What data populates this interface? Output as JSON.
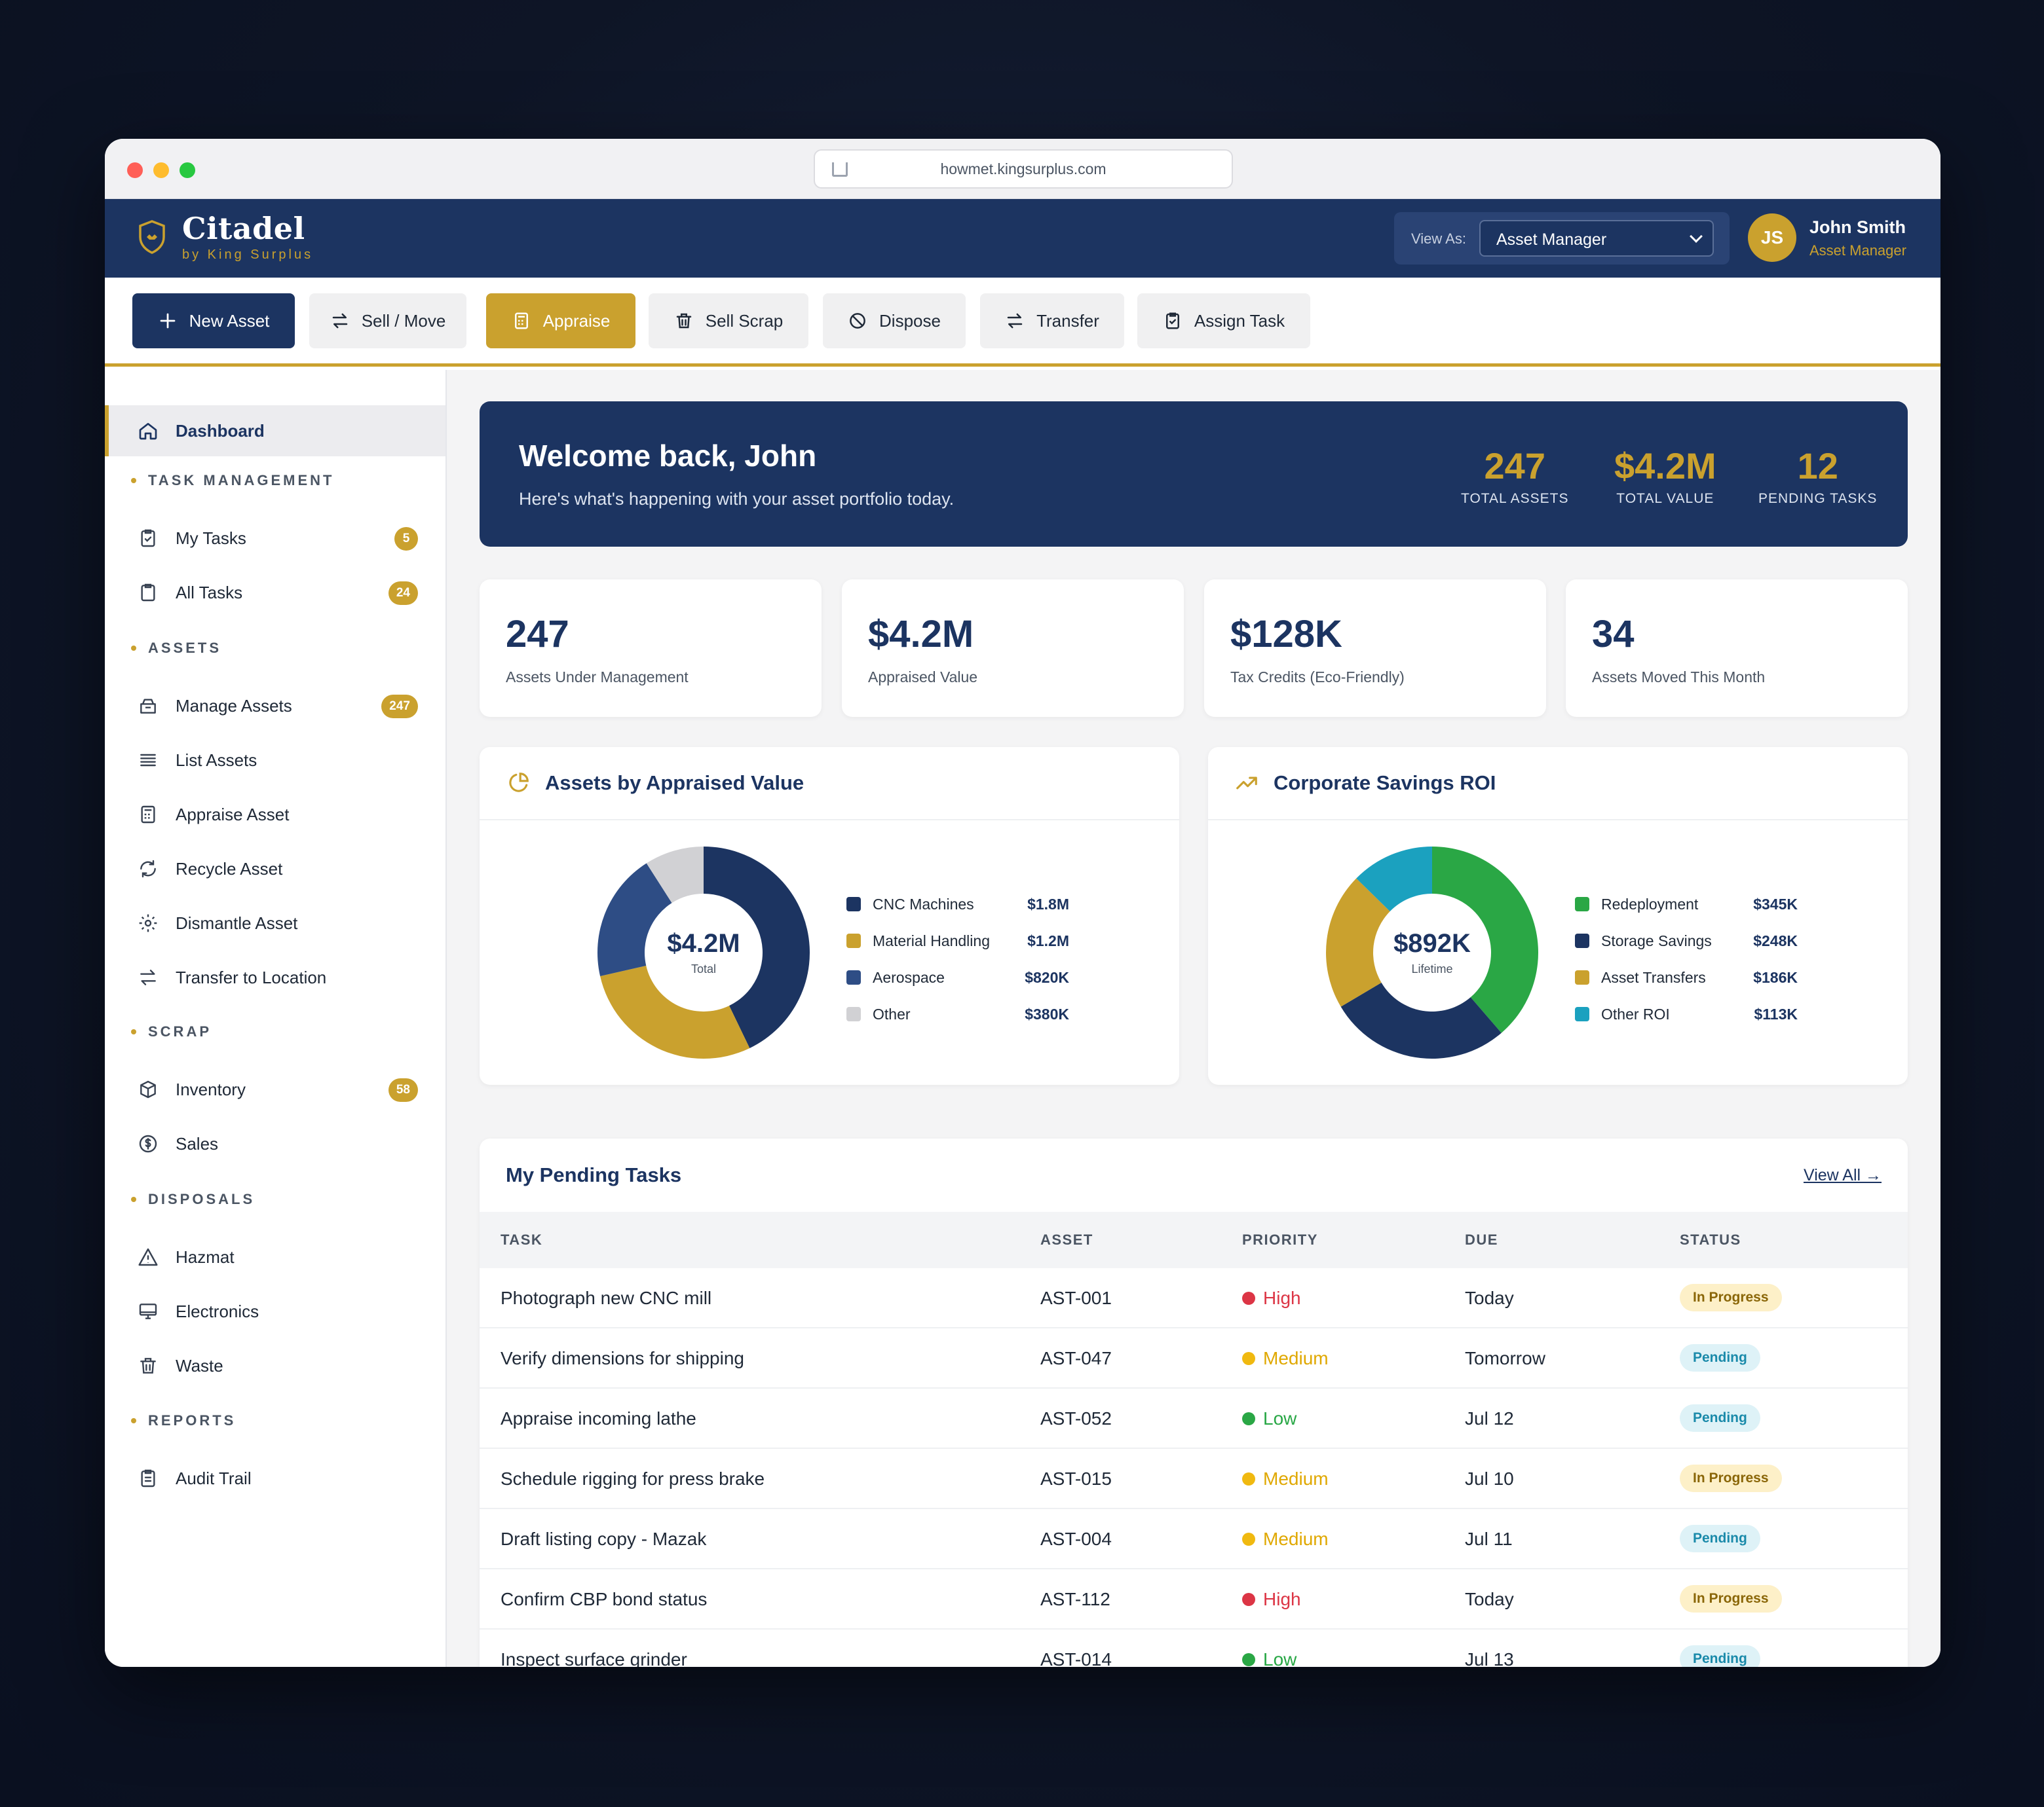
{
  "browser": {
    "url": "howmet.kingsurplus.com"
  },
  "header": {
    "brand_name": "Citadel",
    "brand_sub": "by King Surplus",
    "view_as_label": "View As:",
    "view_as_value": "Asset Manager",
    "avatar_initials": "JS",
    "user_name": "John Smith",
    "user_role": "Asset Manager"
  },
  "toolbar": [
    {
      "label": "New Asset",
      "icon": "plus-icon",
      "style": "primary"
    },
    {
      "label": "Sell / Move",
      "icon": "arrows-swap-icon",
      "style": "default"
    },
    {
      "label": "Appraise",
      "icon": "calculator-icon",
      "style": "gold"
    },
    {
      "label": "Sell Scrap",
      "icon": "trash-icon",
      "style": "default"
    },
    {
      "label": "Dispose",
      "icon": "ban-icon",
      "style": "default"
    },
    {
      "label": "Transfer",
      "icon": "arrows-swap-icon",
      "style": "default"
    },
    {
      "label": "Assign Task",
      "icon": "clipboard-check-icon",
      "style": "default"
    }
  ],
  "sidebar": {
    "dashboard": {
      "label": "Dashboard",
      "icon": "home-icon"
    },
    "sections": [
      {
        "title": "TASK MANAGEMENT",
        "items": [
          {
            "label": "My Tasks",
            "icon": "clipboard-check-icon",
            "badge": "5"
          },
          {
            "label": "All Tasks",
            "icon": "clipboard-icon",
            "badge": "24"
          }
        ]
      },
      {
        "title": "ASSETS",
        "items": [
          {
            "label": "Manage Assets",
            "icon": "box-icon",
            "badge": "247"
          },
          {
            "label": "List Assets",
            "icon": "list-icon",
            "badge": ""
          },
          {
            "label": "Appraise Asset",
            "icon": "calculator-icon",
            "badge": ""
          },
          {
            "label": "Recycle Asset",
            "icon": "recycle-icon",
            "badge": ""
          },
          {
            "label": "Dismantle Asset",
            "icon": "gear-icon",
            "badge": ""
          },
          {
            "label": "Transfer to Location",
            "icon": "arrows-swap-icon",
            "badge": ""
          }
        ]
      },
      {
        "title": "SCRAP",
        "items": [
          {
            "label": "Inventory",
            "icon": "cube-icon",
            "badge": "58"
          },
          {
            "label": "Sales",
            "icon": "dollar-icon",
            "badge": ""
          }
        ]
      },
      {
        "title": "DISPOSALS",
        "items": [
          {
            "label": "Hazmat",
            "icon": "warning-icon",
            "badge": ""
          },
          {
            "label": "Electronics",
            "icon": "monitor-icon",
            "badge": ""
          },
          {
            "label": "Waste",
            "icon": "trash-icon",
            "badge": ""
          }
        ]
      },
      {
        "title": "REPORTS",
        "items": [
          {
            "label": "Audit Trail",
            "icon": "clipboard-icon",
            "badge": ""
          }
        ]
      }
    ]
  },
  "welcome": {
    "title": "Welcome back, John",
    "subtitle": "Here's what's happening with your asset portfolio today.",
    "stats": [
      {
        "value": "247",
        "label": "TOTAL ASSETS"
      },
      {
        "value": "$4.2M",
        "label": "TOTAL VALUE"
      },
      {
        "value": "12",
        "label": "PENDING TASKS"
      }
    ]
  },
  "kpis": [
    {
      "value": "247",
      "label": "Assets Under Management"
    },
    {
      "value": "$4.2M",
      "label": "Appraised Value"
    },
    {
      "value": "$128K",
      "label": "Tax Credits (Eco-Friendly)"
    },
    {
      "value": "34",
      "label": "Assets Moved This Month"
    }
  ],
  "panels": {
    "appraised": {
      "title": "Assets by Appraised Value",
      "icon": "pie-chart-icon",
      "center_value": "$4.2M",
      "center_label": "Total"
    },
    "roi": {
      "title": "Corporate Savings ROI",
      "icon": "trending-up-icon",
      "center_value": "$892K",
      "center_label": "Lifetime"
    }
  },
  "chart_data": [
    {
      "type": "pie",
      "title": "Assets by Appraised Value",
      "categories": [
        "CNC Machines",
        "Material Handling",
        "Aerospace",
        "Other"
      ],
      "values": [
        1.8,
        1.2,
        0.82,
        0.38
      ],
      "value_labels": [
        "$1.8M",
        "$1.2M",
        "$820K",
        "$380K"
      ],
      "colors": [
        "#1c3461",
        "#caa12e",
        "#2e4d85",
        "#d1d1d4"
      ]
    },
    {
      "type": "pie",
      "title": "Corporate Savings ROI",
      "categories": [
        "Redeployment",
        "Storage Savings",
        "Asset Transfers",
        "Other ROI"
      ],
      "values": [
        345,
        248,
        186,
        113
      ],
      "value_labels": [
        "$345K",
        "$248K",
        "$186K",
        "$113K"
      ],
      "colors": [
        "#2aa745",
        "#1c3461",
        "#caa12e",
        "#1ba1bf"
      ]
    }
  ],
  "tasks": {
    "title": "My Pending Tasks",
    "view_all": "View All →",
    "columns": [
      "TASK",
      "ASSET",
      "PRIORITY",
      "DUE",
      "STATUS"
    ],
    "priority_colors": {
      "High": "#dc3545",
      "Medium": "#f0b910",
      "Low": "#2aa745"
    },
    "priority_text_colors": {
      "High": "#dc3545",
      "Medium": "#e0a800",
      "Low": "#28a745"
    },
    "rows": [
      {
        "task": "Photograph new CNC mill",
        "asset": "AST-001",
        "priority": "High",
        "due": "Today",
        "status": "In Progress"
      },
      {
        "task": "Verify dimensions for shipping",
        "asset": "AST-047",
        "priority": "Medium",
        "due": "Tomorrow",
        "status": "Pending"
      },
      {
        "task": "Appraise incoming lathe",
        "asset": "AST-052",
        "priority": "Low",
        "due": "Jul 12",
        "status": "Pending"
      },
      {
        "task": "Schedule rigging for press brake",
        "asset": "AST-015",
        "priority": "Medium",
        "due": "Jul 10",
        "status": "In Progress"
      },
      {
        "task": "Draft listing copy - Mazak",
        "asset": "AST-004",
        "priority": "Medium",
        "due": "Jul 11",
        "status": "Pending"
      },
      {
        "task": "Confirm CBP bond status",
        "asset": "AST-112",
        "priority": "High",
        "due": "Today",
        "status": "In Progress"
      },
      {
        "task": "Inspect surface grinder",
        "asset": "AST-014",
        "priority": "Low",
        "due": "Jul 13",
        "status": "Pending"
      }
    ]
  }
}
